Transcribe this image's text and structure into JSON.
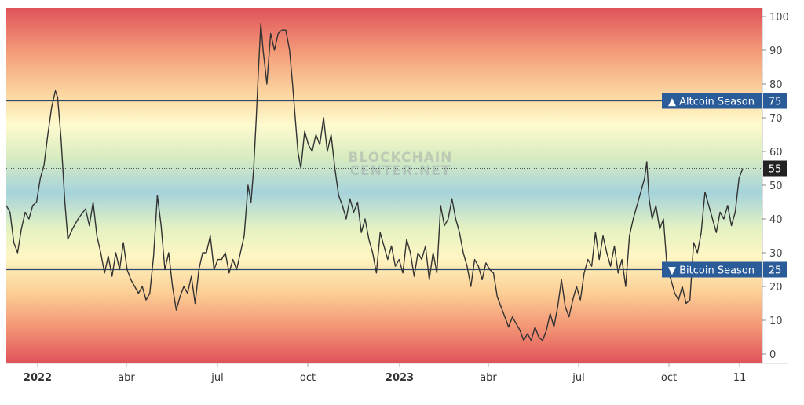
{
  "chart_data": {
    "type": "line",
    "title": "",
    "xlabel": "",
    "ylabel": "",
    "ylim": [
      0,
      100
    ],
    "yticks": [
      0,
      10,
      20,
      30,
      40,
      50,
      60,
      70,
      80,
      90,
      100
    ],
    "x_tick_labels": [
      {
        "label": "2022",
        "bold": true
      },
      {
        "label": "abr",
        "bold": false
      },
      {
        "label": "jul",
        "bold": false
      },
      {
        "label": "oct",
        "bold": false
      },
      {
        "label": "2023",
        "bold": true
      },
      {
        "label": "abr",
        "bold": false
      },
      {
        "label": "jul",
        "bold": false
      },
      {
        "label": "oct",
        "bold": false
      },
      {
        "label": "11",
        "bold": false
      }
    ],
    "reference_lines": [
      {
        "label": "▲ Altcoin Season",
        "value": 75
      },
      {
        "label": "▼ Bitcoin Season",
        "value": 25
      }
    ],
    "current_value": 55,
    "watermark": [
      "BLOCKCHAIN",
      "CENTER.NET"
    ],
    "colors": {
      "line": "#333333",
      "label_bg": "#2a5c9a",
      "current_bg": "#222222",
      "reference_line": "#2c4a6b"
    },
    "background_gradient": [
      {
        "offset": 0.0,
        "color": "#e0525a"
      },
      {
        "offset": 0.12,
        "color": "#f39a78"
      },
      {
        "offset": 0.25,
        "color": "#fcd9a2"
      },
      {
        "offset": 0.33,
        "color": "#fefbcf"
      },
      {
        "offset": 0.42,
        "color": "#d8ecc0"
      },
      {
        "offset": 0.52,
        "color": "#a6d3dc"
      },
      {
        "offset": 0.62,
        "color": "#e4f2c2"
      },
      {
        "offset": 0.7,
        "color": "#fef6c4"
      },
      {
        "offset": 0.8,
        "color": "#fccf96"
      },
      {
        "offset": 0.9,
        "color": "#f39474"
      },
      {
        "offset": 1.0,
        "color": "#e0525a"
      }
    ],
    "series": [
      {
        "values": [
          [
            0.0,
            44
          ],
          [
            1.0,
            42
          ],
          [
            2.0,
            33
          ],
          [
            3.0,
            30
          ],
          [
            4.0,
            37
          ],
          [
            5.0,
            42
          ],
          [
            6.0,
            40
          ],
          [
            7.0,
            44
          ],
          [
            8.0,
            45
          ],
          [
            9.0,
            52
          ],
          [
            10.0,
            56
          ],
          [
            11.0,
            65
          ],
          [
            12.0,
            73
          ],
          [
            13.0,
            78
          ],
          [
            13.6,
            76
          ],
          [
            14.5,
            64
          ],
          [
            15.5,
            45
          ],
          [
            16.3,
            34
          ],
          [
            17.5,
            37
          ],
          [
            19.0,
            40
          ],
          [
            21.0,
            43
          ],
          [
            22.0,
            38
          ],
          [
            23.0,
            45
          ],
          [
            24.0,
            35
          ],
          [
            25.0,
            30
          ],
          [
            26.0,
            24
          ],
          [
            27.0,
            29
          ],
          [
            28.0,
            23
          ],
          [
            29.0,
            30
          ],
          [
            30.0,
            25
          ],
          [
            31.0,
            33
          ],
          [
            32.0,
            25
          ],
          [
            33.0,
            22
          ],
          [
            34.0,
            20
          ],
          [
            35.0,
            18
          ],
          [
            36.0,
            20
          ],
          [
            37.0,
            16
          ],
          [
            38.0,
            18
          ],
          [
            39.0,
            29
          ],
          [
            40.0,
            47
          ],
          [
            41.0,
            38
          ],
          [
            42.0,
            25
          ],
          [
            43.0,
            30
          ],
          [
            44.0,
            20
          ],
          [
            45.0,
            13
          ],
          [
            46.0,
            17
          ],
          [
            47.0,
            20
          ],
          [
            48.0,
            18
          ],
          [
            49.0,
            23
          ],
          [
            50.0,
            15
          ],
          [
            51.0,
            25
          ],
          [
            52.0,
            30
          ],
          [
            53.0,
            30
          ],
          [
            54.0,
            35
          ],
          [
            55.0,
            25
          ],
          [
            56.0,
            28
          ],
          [
            57.0,
            28
          ],
          [
            58.0,
            30
          ],
          [
            59.0,
            24
          ],
          [
            60.0,
            28
          ],
          [
            61.0,
            25
          ],
          [
            62.0,
            30
          ],
          [
            63.0,
            35
          ],
          [
            64.0,
            50
          ],
          [
            64.8,
            45
          ],
          [
            65.5,
            55
          ],
          [
            66.2,
            70
          ],
          [
            66.8,
            85
          ],
          [
            67.4,
            98
          ],
          [
            68.0,
            90
          ],
          [
            69.0,
            80
          ],
          [
            70.0,
            95
          ],
          [
            71.0,
            90
          ],
          [
            72.0,
            95
          ],
          [
            73.0,
            96
          ],
          [
            74.0,
            96
          ],
          [
            75.0,
            90
          ],
          [
            75.8,
            80
          ],
          [
            76.5,
            70
          ],
          [
            77.2,
            60
          ],
          [
            78.0,
            55
          ],
          [
            79.0,
            66
          ],
          [
            80.0,
            62
          ],
          [
            81.0,
            60
          ],
          [
            82.0,
            65
          ],
          [
            83.0,
            62
          ],
          [
            84.0,
            70
          ],
          [
            85.0,
            60
          ],
          [
            86.0,
            65
          ],
          [
            87.0,
            55
          ],
          [
            88.0,
            47
          ],
          [
            89.0,
            44
          ],
          [
            90.0,
            40
          ],
          [
            91.0,
            46
          ],
          [
            92.0,
            42
          ],
          [
            93.0,
            45
          ],
          [
            94.0,
            36
          ],
          [
            95.0,
            40
          ],
          [
            96.0,
            34
          ],
          [
            97.0,
            30
          ],
          [
            98.0,
            24
          ],
          [
            99.0,
            36
          ],
          [
            100.0,
            32
          ],
          [
            101.0,
            28
          ],
          [
            102.0,
            32
          ],
          [
            103.0,
            26
          ],
          [
            104.0,
            28
          ],
          [
            105.0,
            24
          ],
          [
            106.0,
            34
          ],
          [
            107.0,
            30
          ],
          [
            108.0,
            23
          ],
          [
            109.0,
            30
          ],
          [
            110.0,
            28
          ],
          [
            111.0,
            32
          ],
          [
            112.0,
            22
          ],
          [
            113.0,
            30
          ],
          [
            114.0,
            24
          ],
          [
            115.0,
            44
          ],
          [
            116.0,
            38
          ],
          [
            117.0,
            40
          ],
          [
            118.0,
            46
          ],
          [
            119.0,
            40
          ],
          [
            120.0,
            36
          ],
          [
            121.0,
            30
          ],
          [
            122.0,
            26
          ],
          [
            123.0,
            20
          ],
          [
            124.0,
            28
          ],
          [
            125.0,
            26
          ],
          [
            126.0,
            22
          ],
          [
            127.0,
            27
          ],
          [
            128.0,
            25
          ],
          [
            129.0,
            24
          ],
          [
            130.0,
            17
          ],
          [
            131.0,
            14
          ],
          [
            132.0,
            11
          ],
          [
            133.0,
            8
          ],
          [
            134.0,
            11
          ],
          [
            135.0,
            9
          ],
          [
            136.0,
            7
          ],
          [
            137.0,
            4
          ],
          [
            138.0,
            6
          ],
          [
            139.0,
            4
          ],
          [
            140.0,
            8
          ],
          [
            141.0,
            5
          ],
          [
            142.0,
            4
          ],
          [
            143.0,
            7
          ],
          [
            144.0,
            12
          ],
          [
            145.0,
            8
          ],
          [
            146.0,
            14
          ],
          [
            147.0,
            22
          ],
          [
            148.0,
            14
          ],
          [
            149.0,
            11
          ],
          [
            150.0,
            16
          ],
          [
            151.0,
            20
          ],
          [
            152.0,
            16
          ],
          [
            153.0,
            24
          ],
          [
            154.0,
            28
          ],
          [
            155.0,
            26
          ],
          [
            156.0,
            36
          ],
          [
            157.0,
            28
          ],
          [
            158.0,
            35
          ],
          [
            159.0,
            30
          ],
          [
            160.0,
            26
          ],
          [
            161.0,
            32
          ],
          [
            162.0,
            24
          ],
          [
            163.0,
            28
          ],
          [
            164.0,
            20
          ],
          [
            165.0,
            35
          ],
          [
            166.0,
            40
          ],
          [
            167.0,
            44
          ],
          [
            168.0,
            48
          ],
          [
            169.0,
            52
          ],
          [
            169.6,
            57
          ],
          [
            170.2,
            46
          ],
          [
            171.0,
            40
          ],
          [
            172.0,
            44
          ],
          [
            173.0,
            37
          ],
          [
            174.0,
            40
          ],
          [
            175.0,
            25
          ],
          [
            176.0,
            22
          ],
          [
            177.0,
            18
          ],
          [
            178.0,
            16
          ],
          [
            179.0,
            20
          ],
          [
            180.0,
            15
          ],
          [
            181.0,
            16
          ],
          [
            182.0,
            33
          ],
          [
            183.0,
            30
          ],
          [
            184.0,
            36
          ],
          [
            185.0,
            48
          ],
          [
            186.0,
            44
          ],
          [
            187.0,
            40
          ],
          [
            188.0,
            36
          ],
          [
            189.0,
            42
          ],
          [
            190.0,
            40
          ],
          [
            191.0,
            44
          ],
          [
            192.0,
            38
          ],
          [
            193.0,
            42
          ],
          [
            194.0,
            52
          ],
          [
            195.0,
            55
          ]
        ]
      }
    ]
  }
}
